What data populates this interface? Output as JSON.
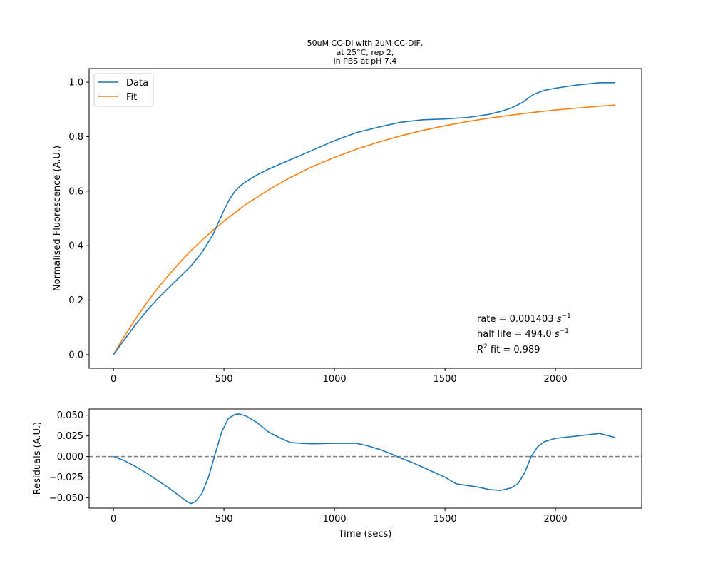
{
  "title_lines": [
    "50uM CC-Di with 2uM CC-DiF,",
    "at 25°C, rep 2,",
    "in PBS at pH 7.4"
  ],
  "colors": {
    "data": "#1f77b4",
    "fit": "#ff7f0e",
    "zero_line": "#808080"
  },
  "chart_data": [
    {
      "type": "line",
      "ylabel": "Normalised Fluorescence (A.U.)",
      "xlabel": "",
      "xlim": [
        -110,
        2390
      ],
      "ylim": [
        -0.05,
        1.05
      ],
      "x_ticks": [
        0,
        500,
        1000,
        1500,
        2000
      ],
      "y_ticks": [
        0.0,
        0.2,
        0.4,
        0.6,
        0.8,
        1.0
      ],
      "y_tick_labels": [
        "0.0",
        "0.2",
        "0.4",
        "0.6",
        "0.8",
        "1.0"
      ],
      "legend": {
        "position": "top-left",
        "entries": [
          "Data",
          "Fit"
        ]
      },
      "annotations": {
        "rate_prefix": "rate = 0.001403 ",
        "half_life_prefix": "half life = 494.0 ",
        "unit_base": "s",
        "unit_exp": "−1",
        "r2_base": "R",
        "r2_exp": "2",
        "r2_suffix": " fit = 0.989"
      },
      "series": [
        {
          "name": "Data",
          "x": [
            0,
            50,
            100,
            150,
            200,
            250,
            300,
            350,
            400,
            450,
            475,
            500,
            525,
            550,
            575,
            600,
            650,
            700,
            800,
            900,
            1000,
            1100,
            1200,
            1300,
            1400,
            1500,
            1600,
            1700,
            1750,
            1800,
            1850,
            1900,
            1950,
            2000,
            2100,
            2200,
            2270
          ],
          "y": [
            0.0,
            0.055,
            0.11,
            0.16,
            0.205,
            0.245,
            0.285,
            0.325,
            0.375,
            0.44,
            0.485,
            0.53,
            0.57,
            0.6,
            0.62,
            0.635,
            0.66,
            0.68,
            0.715,
            0.75,
            0.785,
            0.815,
            0.835,
            0.853,
            0.862,
            0.865,
            0.87,
            0.882,
            0.892,
            0.905,
            0.925,
            0.955,
            0.97,
            0.978,
            0.99,
            0.998,
            0.998
          ]
        },
        {
          "name": "Fit",
          "x": [
            0,
            50,
            100,
            150,
            200,
            250,
            300,
            350,
            400,
            450,
            500,
            600,
            700,
            800,
            900,
            1000,
            1100,
            1200,
            1300,
            1400,
            1500,
            1600,
            1700,
            1800,
            1900,
            2000,
            2100,
            2200,
            2270
          ],
          "y": [
            0.0,
            0.068,
            0.131,
            0.189,
            0.243,
            0.292,
            0.338,
            0.381,
            0.42,
            0.456,
            0.49,
            0.552,
            0.604,
            0.65,
            0.69,
            0.724,
            0.754,
            0.78,
            0.803,
            0.823,
            0.84,
            0.855,
            0.868,
            0.879,
            0.889,
            0.898,
            0.905,
            0.912,
            0.916
          ]
        }
      ]
    },
    {
      "type": "line",
      "ylabel": "Residuals (A.U.)",
      "xlabel": "Time (secs)",
      "xlim": [
        -110,
        2390
      ],
      "ylim": [
        -0.0625,
        0.0575
      ],
      "x_ticks": [
        0,
        500,
        1000,
        1500,
        2000
      ],
      "y_ticks": [
        -0.05,
        -0.025,
        0.0,
        0.025,
        0.05
      ],
      "y_tick_labels": [
        "−0.050",
        "−0.025",
        "0.000",
        "0.025",
        "0.050"
      ],
      "reference_line": {
        "y": 0.0,
        "style": "dashed"
      },
      "series": [
        {
          "name": "Residuals",
          "x": [
            0,
            50,
            100,
            150,
            200,
            250,
            300,
            330,
            350,
            370,
            400,
            430,
            460,
            490,
            520,
            550,
            570,
            600,
            650,
            700,
            750,
            800,
            850,
            900,
            1000,
            1100,
            1150,
            1200,
            1250,
            1300,
            1350,
            1400,
            1450,
            1500,
            1550,
            1600,
            1650,
            1700,
            1750,
            1800,
            1830,
            1860,
            1890,
            1920,
            1950,
            2000,
            2100,
            2200,
            2270
          ],
          "y": [
            0.0,
            -0.005,
            -0.012,
            -0.02,
            -0.029,
            -0.038,
            -0.048,
            -0.054,
            -0.057,
            -0.055,
            -0.045,
            -0.025,
            0.003,
            0.03,
            0.046,
            0.051,
            0.0515,
            0.049,
            0.041,
            0.03,
            0.023,
            0.017,
            0.016,
            0.0155,
            0.016,
            0.016,
            0.013,
            0.009,
            0.004,
            -0.002,
            -0.007,
            -0.013,
            -0.019,
            -0.025,
            -0.033,
            -0.035,
            -0.037,
            -0.04,
            -0.041,
            -0.038,
            -0.033,
            -0.02,
            0.0,
            0.012,
            0.018,
            0.022,
            0.025,
            0.028,
            0.023
          ]
        }
      ]
    }
  ]
}
